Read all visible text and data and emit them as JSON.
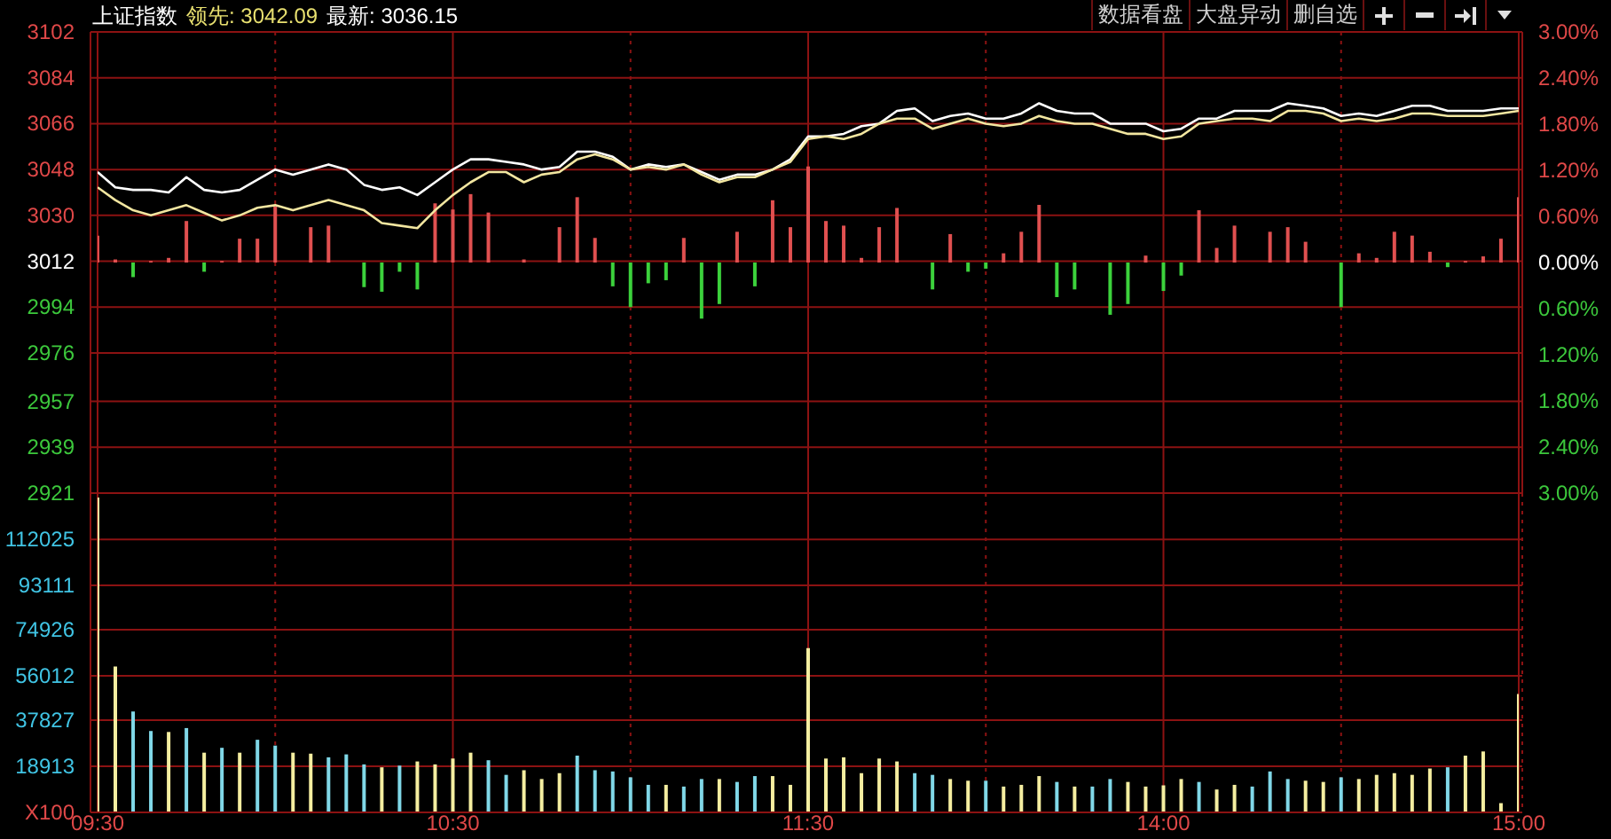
{
  "chart_data": [
    {
      "type": "line",
      "title": "上证指数",
      "annotations": [
        "领先: 3042.09",
        "最新: 3036.15",
        "数据看盘",
        "大盘异动",
        "删自选"
      ],
      "categories": [
        null,
        null,
        null,
        null,
        null,
        null,
        null,
        null,
        null,
        null,
        null,
        null,
        null,
        null,
        null,
        null,
        null,
        null,
        null,
        null,
        null,
        null,
        null,
        null,
        null,
        null,
        null,
        null,
        null,
        null,
        null,
        null,
        null,
        null,
        null,
        null,
        null,
        null,
        null,
        null,
        null,
        null,
        null,
        null,
        null,
        null,
        null,
        null,
        null,
        null,
        null,
        null,
        null,
        null,
        null,
        null,
        null,
        null,
        null,
        null,
        null,
        null,
        null,
        null,
        null,
        null,
        null,
        null,
        null,
        null,
        null,
        null,
        null,
        null,
        null,
        null,
        null,
        null,
        null,
        null,
        null
      ],
      "ylim": [
        2921,
        3102
      ],
      "yticks": [
        3102,
        3084,
        3066,
        3048,
        3030,
        3012,
        2994,
        2976,
        2957,
        2939,
        2921
      ],
      "y2lim": [
        -3,
        3
      ],
      "y2ticks": [
        {
          "value": 3,
          "label": "3.00%"
        },
        {
          "value": 2.4,
          "label": "2.40%"
        },
        {
          "value": 1.8,
          "label": "1.80%"
        },
        {
          "value": 1.2,
          "label": "1.20%"
        },
        {
          "value": 0.6,
          "label": "0.60%"
        },
        {
          "value": 0,
          "label": "0.00%"
        },
        {
          "value": -0.6,
          "label": "0.60%"
        },
        {
          "value": -1.2,
          "label": "1.20%"
        },
        {
          "value": -1.8,
          "label": "1.80%"
        },
        {
          "value": -2.4,
          "label": "2.40%"
        },
        {
          "value": -3,
          "label": "3.00%"
        }
      ],
      "grid": true,
      "tick_labels": "y",
      "series": [
        {
          "type": "bar",
          "axis": "y2",
          "values": [
            0.35,
            0.04,
            -0.19,
            0.02,
            0.06,
            0.54,
            -0.12,
            0.02,
            0.31,
            0.31,
            0.73,
            0,
            0.46,
            0.48,
            0,
            -0.32,
            -0.38,
            -0.12,
            -0.35,
            0.77,
            0.69,
            0.89,
            0.65,
            0,
            0.04,
            0,
            0.46,
            0.85,
            0.32,
            -0.31,
            -0.58,
            -0.27,
            -0.23,
            0.32,
            -0.73,
            -0.54,
            0.4,
            -0.31,
            0.81,
            0.46,
            1.25,
            0.54,
            0.48,
            0.06,
            0.46,
            0.71,
            0,
            -0.35,
            0.37,
            -0.12,
            -0.08,
            0.12,
            0.4,
            0.75,
            -0.45,
            -0.35,
            0,
            -0.68,
            -0.54,
            0.09,
            -0.37,
            -0.17,
            0.68,
            0.19,
            0.48,
            0,
            0.4,
            0.46,
            0.27,
            0,
            -0.58,
            0.12,
            0.06,
            0.4,
            0.35,
            0.14,
            -0.06,
            0.02,
            0.08,
            0.31,
            0.85
          ],
          "colors": [
            "#e05050",
            "#e05050",
            "#3cd23c",
            "#e05050",
            "#e05050",
            "#e05050",
            "#3cd23c",
            "#e05050",
            "#e05050",
            "#e05050",
            "#e05050",
            "#e05050",
            "#e05050",
            "#e05050",
            "#e05050",
            "#3cd23c",
            "#3cd23c",
            "#3cd23c",
            "#3cd23c",
            "#e05050",
            "#e05050",
            "#e05050",
            "#e05050",
            "#e05050",
            "#e05050",
            "#e05050",
            "#e05050",
            "#e05050",
            "#e05050",
            "#3cd23c",
            "#3cd23c",
            "#3cd23c",
            "#3cd23c",
            "#e05050",
            "#3cd23c",
            "#3cd23c",
            "#e05050",
            "#3cd23c",
            "#e05050",
            "#e05050",
            "#e05050",
            "#e05050",
            "#e05050",
            "#e05050",
            "#e05050",
            "#e05050",
            "#e05050",
            "#3cd23c",
            "#e05050",
            "#3cd23c",
            "#3cd23c",
            "#e05050",
            "#e05050",
            "#e05050",
            "#3cd23c",
            "#3cd23c",
            "#e05050",
            "#3cd23c",
            "#3cd23c",
            "#e05050",
            "#3cd23c",
            "#3cd23c",
            "#e05050",
            "#e05050",
            "#e05050",
            "#e05050",
            "#e05050",
            "#e05050",
            "#e05050",
            "#e05050",
            "#3cd23c",
            "#e05050",
            "#e05050",
            "#e05050",
            "#e05050",
            "#e05050",
            "#3cd23c",
            "#e05050",
            "#e05050",
            "#e05050",
            "#e05050"
          ]
        },
        {
          "color": "#ffffff",
          "values": [
            3047,
            3041,
            3040,
            3040,
            3039,
            3045,
            3040,
            3039,
            3040,
            3044,
            3048,
            3046,
            3048,
            3050,
            3048,
            3042,
            3040,
            3041,
            3038,
            3043,
            3048,
            3052,
            3052,
            3051,
            3050,
            3048,
            3049,
            3055,
            3055,
            3053,
            3048,
            3050,
            3049,
            3050,
            3047,
            3044,
            3046,
            3046,
            3048,
            3052,
            3061,
            3061,
            3062,
            3065,
            3066,
            3071,
            3072,
            3067,
            3069,
            3070,
            3068,
            3068,
            3070,
            3074,
            3071,
            3070,
            3070,
            3066,
            3066,
            3066,
            3063,
            3064,
            3068,
            3068,
            3071,
            3071,
            3071,
            3074,
            3073,
            3072,
            3069,
            3070,
            3069,
            3071,
            3073,
            3073,
            3071,
            3071,
            3071,
            3072,
            3072
          ]
        },
        {
          "color": "#f2e6a0",
          "values": [
            3041,
            3036,
            3032,
            3030,
            3032,
            3034,
            3031,
            3028,
            3030,
            3033,
            3034,
            3032,
            3034,
            3036,
            3034,
            3032,
            3027,
            3026,
            3025,
            3032,
            3038,
            3043,
            3047,
            3047,
            3043,
            3046,
            3047,
            3052,
            3054,
            3052,
            3048,
            3049,
            3048,
            3050,
            3046,
            3043,
            3045,
            3045,
            3048,
            3051,
            3060,
            3061,
            3060,
            3062,
            3066,
            3068,
            3068,
            3064,
            3066,
            3068,
            3066,
            3065,
            3066,
            3069,
            3067,
            3066,
            3066,
            3064,
            3062,
            3062,
            3060,
            3061,
            3066,
            3067,
            3068,
            3068,
            3067,
            3071,
            3071,
            3070,
            3067,
            3068,
            3067,
            3068,
            3070,
            3070,
            3069,
            3069,
            3069,
            3070,
            3071
          ]
        }
      ]
    },
    {
      "type": "bar",
      "categories": [
        "09:30",
        null,
        null,
        null,
        null,
        null,
        null,
        null,
        null,
        null,
        null,
        null,
        null,
        null,
        null,
        null,
        null,
        null,
        null,
        null,
        "10:30",
        null,
        null,
        null,
        null,
        null,
        null,
        null,
        null,
        null,
        null,
        null,
        null,
        null,
        null,
        null,
        null,
        null,
        null,
        null,
        "11:30",
        null,
        null,
        null,
        null,
        null,
        null,
        null,
        null,
        null,
        null,
        null,
        null,
        null,
        null,
        null,
        null,
        null,
        null,
        null,
        "14:00",
        null,
        null,
        null,
        null,
        null,
        null,
        null,
        null,
        null,
        null,
        null,
        null,
        null,
        null,
        null,
        null,
        null,
        null,
        null,
        "15:00"
      ],
      "ylim": [
        0,
        131000
      ],
      "yticks": [
        112025,
        93111,
        74926,
        56012,
        37827,
        18913,
        {
          "value": 0,
          "label": "X100"
        }
      ],
      "grid": true,
      "values": [
        129200,
        59900,
        41400,
        33400,
        33000,
        34600,
        24500,
        26500,
        24500,
        29800,
        27400,
        24500,
        24100,
        22600,
        23800,
        19700,
        18500,
        19200,
        20900,
        19700,
        22100,
        24500,
        21400,
        15400,
        17300,
        13700,
        16100,
        23300,
        17300,
        16800,
        14400,
        11300,
        11300,
        10600,
        13700,
        13700,
        12500,
        14900,
        14900,
        11300,
        67400,
        22100,
        22600,
        16100,
        22100,
        20900,
        16100,
        15400,
        13700,
        13000,
        13000,
        10600,
        11300,
        14900,
        12500,
        10600,
        10600,
        13700,
        12500,
        10600,
        11100,
        13700,
        12500,
        9400,
        11300,
        10600,
        16800,
        13700,
        13000,
        12500,
        14400,
        13700,
        15400,
        16100,
        15400,
        18000,
        18500,
        23300,
        25000,
        3800,
        48600
      ],
      "colors": [
        "#f5eea0",
        "#f5eea0",
        "#80d8e8",
        "#80d8e8",
        "#f5eea0",
        "#80d8e8",
        "#f5eea0",
        "#80d8e8",
        "#f5eea0",
        "#80d8e8",
        "#80d8e8",
        "#f5eea0",
        "#f5eea0",
        "#80d8e8",
        "#80d8e8",
        "#80d8e8",
        "#f5eea0",
        "#80d8e8",
        "#f5eea0",
        "#f5eea0",
        "#f5eea0",
        "#f5eea0",
        "#80d8e8",
        "#80d8e8",
        "#f5eea0",
        "#f5eea0",
        "#f5eea0",
        "#80d8e8",
        "#80d8e8",
        "#80d8e8",
        "#80d8e8",
        "#80d8e8",
        "#f5eea0",
        "#80d8e8",
        "#80d8e8",
        "#f5eea0",
        "#80d8e8",
        "#80d8e8",
        "#f5eea0",
        "#f5eea0",
        "#f5eea0",
        "#f5eea0",
        "#f5eea0",
        "#f5eea0",
        "#f5eea0",
        "#f5eea0",
        "#80d8e8",
        "#80d8e8",
        "#f5eea0",
        "#f5eea0",
        "#80d8e8",
        "#f5eea0",
        "#f5eea0",
        "#f5eea0",
        "#80d8e8",
        "#f5eea0",
        "#80d8e8",
        "#80d8e8",
        "#f5eea0",
        "#f5eea0",
        "#f5eea0",
        "#f5eea0",
        "#80d8e8",
        "#f5eea0",
        "#f5eea0",
        "#80d8e8",
        "#80d8e8",
        "#80d8e8",
        "#f5eea0",
        "#f5eea0",
        "#80d8e8",
        "#f5eea0",
        "#f5eea0",
        "#f5eea0",
        "#f5eea0",
        "#f5eea0",
        "#80d8e8",
        "#f5eea0",
        "#f5eea0",
        "#f5eea0",
        "#f5eea0"
      ]
    }
  ]
}
